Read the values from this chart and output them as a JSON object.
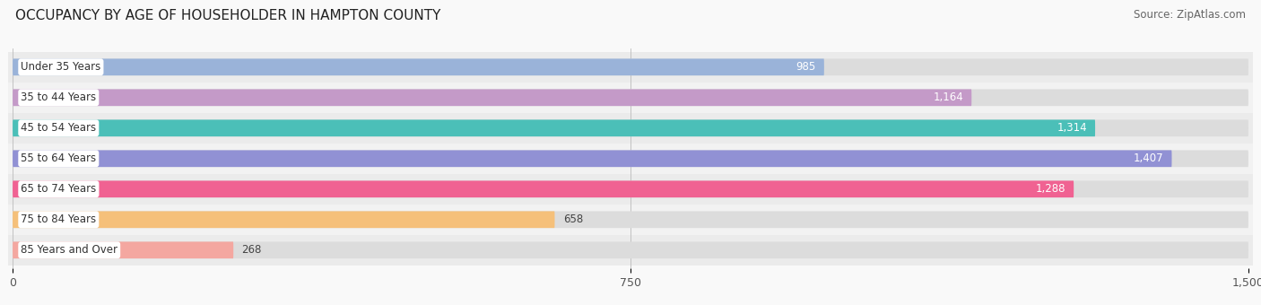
{
  "title": "OCCUPANCY BY AGE OF HOUSEHOLDER IN HAMPTON COUNTY",
  "source": "Source: ZipAtlas.com",
  "categories": [
    "Under 35 Years",
    "35 to 44 Years",
    "45 to 54 Years",
    "55 to 64 Years",
    "65 to 74 Years",
    "75 to 84 Years",
    "85 Years and Over"
  ],
  "values": [
    985,
    1164,
    1314,
    1407,
    1288,
    658,
    268
  ],
  "bar_colors": [
    "#9ab3d9",
    "#c49ac8",
    "#4bbfb8",
    "#9191d4",
    "#f06292",
    "#f5c07a",
    "#f4a7a0"
  ],
  "label_colors": [
    "white",
    "white",
    "white",
    "white",
    "white",
    "black",
    "black"
  ],
  "xlim": [
    0,
    1500
  ],
  "xticks": [
    0,
    750,
    1500
  ],
  "xticklabels": [
    "0",
    "750",
    "1,500"
  ],
  "background_color": "#f2f2f2",
  "bar_background_color": "#e0e0e0",
  "row_bg_colors": [
    "#ebebeb",
    "#f5f5f5"
  ],
  "title_fontsize": 11,
  "label_fontsize": 8.5,
  "tick_fontsize": 9,
  "source_fontsize": 8.5
}
